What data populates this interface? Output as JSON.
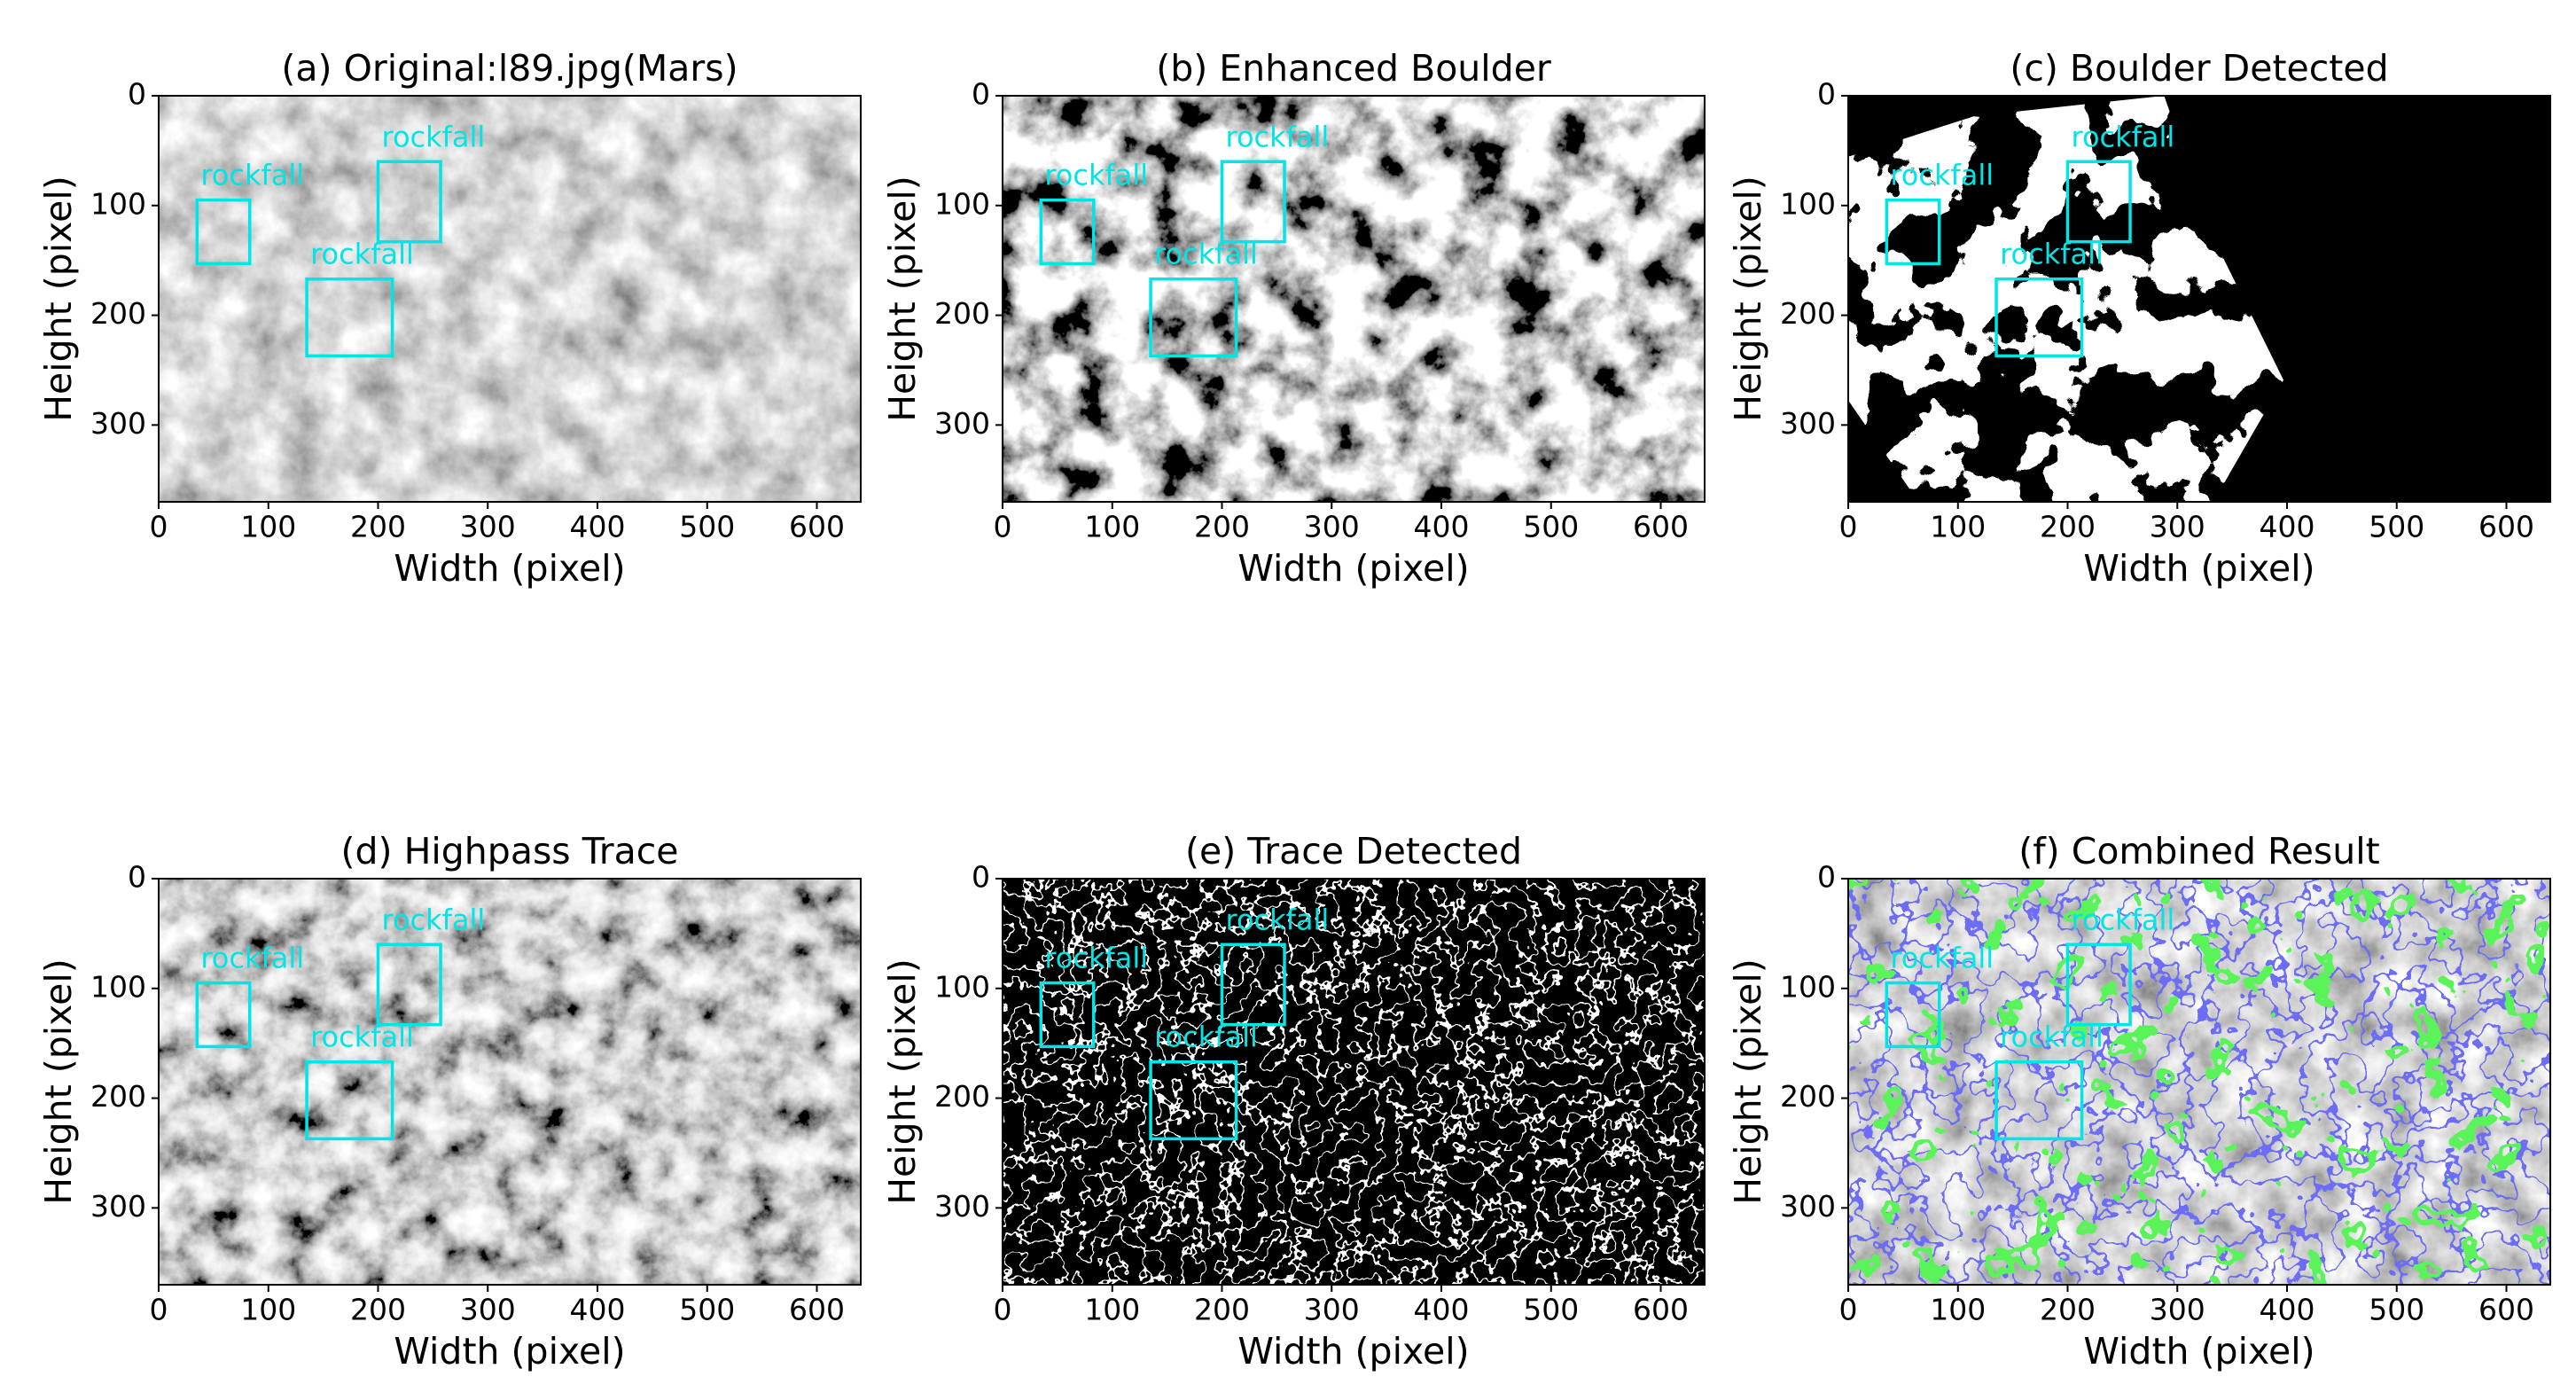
{
  "chart_data": [
    {
      "type": "image",
      "title": "(a) Original:l89.jpg(Mars)",
      "xlabel": "Width (pixel)",
      "ylabel": "Height (pixel)",
      "xlim": [
        0,
        640
      ],
      "ylim": [
        370,
        0
      ],
      "xticks": [
        0,
        100,
        200,
        300,
        400,
        500,
        600
      ],
      "yticks": [
        0,
        100,
        200,
        300
      ],
      "box_color": "#00e5e5",
      "boxes": [
        {
          "label": "rockfall",
          "x": [
            35,
            83
          ],
          "y": [
            95,
            153
          ]
        },
        {
          "label": "rockfall",
          "x": [
            200,
            257
          ],
          "y": [
            60,
            133
          ]
        },
        {
          "label": "rockfall",
          "x": [
            135,
            213
          ],
          "y": [
            167,
            237
          ]
        }
      ]
    },
    {
      "type": "image",
      "title": "(b) Enhanced Boulder",
      "xlabel": "Width (pixel)",
      "ylabel": "Height (pixel)",
      "xlim": [
        0,
        640
      ],
      "ylim": [
        370,
        0
      ],
      "xticks": [
        0,
        100,
        200,
        300,
        400,
        500,
        600
      ],
      "yticks": [
        0,
        100,
        200,
        300
      ],
      "box_color": "#00e5e5",
      "boxes": [
        {
          "label": "rockfall",
          "x": [
            35,
            83
          ],
          "y": [
            95,
            153
          ]
        },
        {
          "label": "rockfall",
          "x": [
            200,
            257
          ],
          "y": [
            60,
            133
          ]
        },
        {
          "label": "rockfall",
          "x": [
            135,
            213
          ],
          "y": [
            167,
            237
          ]
        }
      ]
    },
    {
      "type": "image",
      "title": "(c) Boulder Detected",
      "xlabel": "Width (pixel)",
      "ylabel": "Height (pixel)",
      "xlim": [
        0,
        640
      ],
      "ylim": [
        370,
        0
      ],
      "xticks": [
        0,
        100,
        200,
        300,
        400,
        500,
        600
      ],
      "yticks": [
        0,
        100,
        200,
        300
      ],
      "box_color": "#00e5e5",
      "boxes": [
        {
          "label": "rockfall",
          "x": [
            35,
            83
          ],
          "y": [
            95,
            153
          ]
        },
        {
          "label": "rockfall",
          "x": [
            200,
            257
          ],
          "y": [
            60,
            133
          ]
        },
        {
          "label": "rockfall",
          "x": [
            135,
            213
          ],
          "y": [
            167,
            237
          ]
        }
      ]
    },
    {
      "type": "image",
      "title": "(d) Highpass Trace",
      "xlabel": "Width (pixel)",
      "ylabel": "Height (pixel)",
      "xlim": [
        0,
        640
      ],
      "ylim": [
        370,
        0
      ],
      "xticks": [
        0,
        100,
        200,
        300,
        400,
        500,
        600
      ],
      "yticks": [
        0,
        100,
        200,
        300
      ],
      "box_color": "#00e5e5",
      "boxes": [
        {
          "label": "rockfall",
          "x": [
            35,
            83
          ],
          "y": [
            95,
            153
          ]
        },
        {
          "label": "rockfall",
          "x": [
            200,
            257
          ],
          "y": [
            60,
            133
          ]
        },
        {
          "label": "rockfall",
          "x": [
            135,
            213
          ],
          "y": [
            167,
            237
          ]
        }
      ]
    },
    {
      "type": "image",
      "title": "(e) Trace Detected",
      "xlabel": "Width (pixel)",
      "ylabel": "Height (pixel)",
      "xlim": [
        0,
        640
      ],
      "ylim": [
        370,
        0
      ],
      "xticks": [
        0,
        100,
        200,
        300,
        400,
        500,
        600
      ],
      "yticks": [
        0,
        100,
        200,
        300
      ],
      "box_color": "#00e5e5",
      "boxes": [
        {
          "label": "rockfall",
          "x": [
            35,
            83
          ],
          "y": [
            95,
            153
          ]
        },
        {
          "label": "rockfall",
          "x": [
            200,
            257
          ],
          "y": [
            60,
            133
          ]
        },
        {
          "label": "rockfall",
          "x": [
            135,
            213
          ],
          "y": [
            167,
            237
          ]
        }
      ]
    },
    {
      "type": "image",
      "title": "(f) Combined Result",
      "xlabel": "Width (pixel)",
      "ylabel": "Height (pixel)",
      "xlim": [
        0,
        640
      ],
      "ylim": [
        370,
        0
      ],
      "xticks": [
        0,
        100,
        200,
        300,
        400,
        500,
        600
      ],
      "yticks": [
        0,
        100,
        200,
        300
      ],
      "box_color": "#00e5e5",
      "boxes": [
        {
          "label": "rockfall",
          "x": [
            35,
            83
          ],
          "y": [
            95,
            153
          ]
        },
        {
          "label": "rockfall",
          "x": [
            200,
            257
          ],
          "y": [
            60,
            133
          ]
        },
        {
          "label": "rockfall",
          "x": [
            135,
            213
          ],
          "y": [
            167,
            237
          ]
        }
      ]
    }
  ]
}
